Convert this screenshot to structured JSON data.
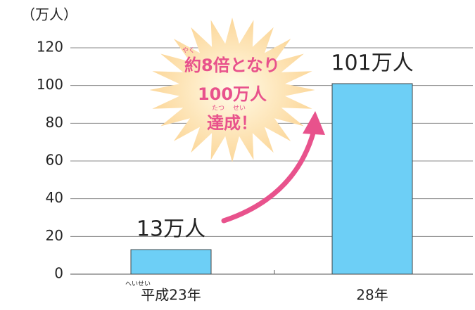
{
  "chart_data": {
    "type": "bar",
    "unit_label": "（万人）",
    "categories": [
      "平成23年",
      "28年"
    ],
    "category_ruby": "へいせい",
    "values": [
      13,
      101
    ],
    "value_labels": [
      "13万人",
      "101万人"
    ],
    "color": "#6dcff6",
    "ylim": [
      0,
      120
    ],
    "yticks": [
      0,
      20,
      40,
      60,
      80,
      100,
      120
    ],
    "grid": true,
    "annotation": {
      "lines": [
        "約8倍となり",
        "100万人",
        "達成！"
      ],
      "ruby": [
        "やく",
        "たつ",
        "せい"
      ],
      "color": "#e8528c"
    }
  }
}
